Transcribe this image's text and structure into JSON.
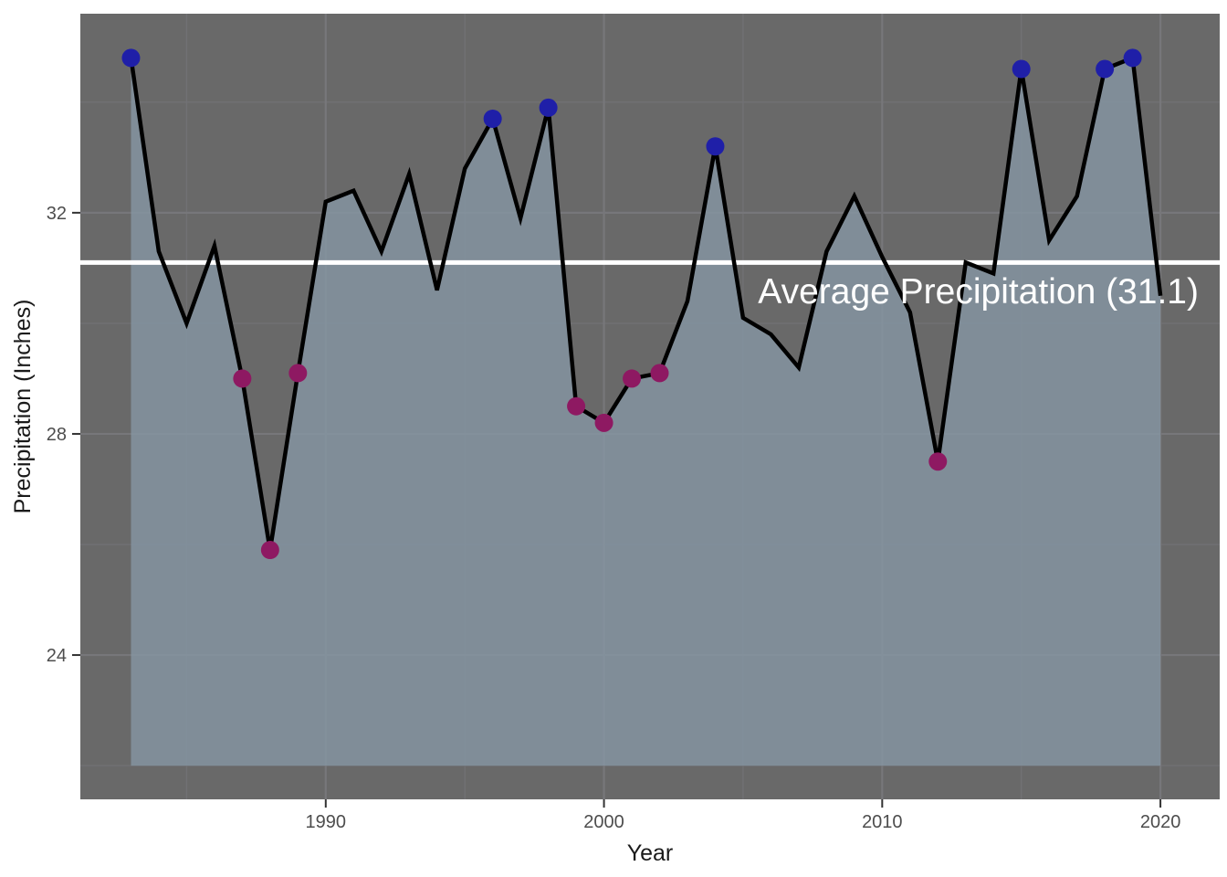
{
  "annotation": {
    "label": "Average Precipitation (31.1)",
    "value": 31.1
  },
  "axes": {
    "x": {
      "label": "Year",
      "tick_labels": [
        "1990",
        "2000",
        "2010",
        "2020"
      ]
    },
    "y": {
      "label": "Precipitation (Inches)",
      "tick_labels": [
        "32",
        "28",
        "24"
      ]
    }
  },
  "colors": {
    "outer_bg": "#ffffff",
    "panel_bg": "#696969",
    "grid_major": "#77777a",
    "grid_minor": "#717174",
    "area_fill": "rgba(134,150,164,0.8)",
    "data_line": "#000000",
    "average_line": "#ffffff",
    "high_point": "#1f1fa8",
    "low_point": "#8e1962",
    "tick_label": "#4d4d4d",
    "axis_title": "#1a1a1a",
    "tick_mark": "#333333",
    "annotation_text": "#ffffff"
  },
  "chart_data": {
    "type": "line",
    "title": "",
    "xlabel": "Year",
    "ylabel": "Precipitation (Inches)",
    "annotation_text": "Average Precipitation (31.1)",
    "x": [
      1983,
      1984,
      1985,
      1986,
      1987,
      1988,
      1989,
      1990,
      1991,
      1992,
      1993,
      1994,
      1995,
      1996,
      1997,
      1998,
      1999,
      2000,
      2001,
      2002,
      2003,
      2004,
      2005,
      2006,
      2007,
      2008,
      2009,
      2010,
      2011,
      2012,
      2013,
      2014,
      2015,
      2016,
      2017,
      2018,
      2019,
      2020
    ],
    "values": [
      34.8,
      31.3,
      30.0,
      31.4,
      29.0,
      25.9,
      29.1,
      32.2,
      32.4,
      31.3,
      32.7,
      30.6,
      32.8,
      33.7,
      31.9,
      33.9,
      28.5,
      28.2,
      29.0,
      29.1,
      30.4,
      33.2,
      30.1,
      29.8,
      29.2,
      31.3,
      32.3,
      31.2,
      30.2,
      27.5,
      31.1,
      30.9,
      34.6,
      31.5,
      32.3,
      34.6,
      34.8,
      30.5
    ],
    "average": 31.1,
    "high_years": [
      1983,
      1996,
      1998,
      2004,
      2015,
      2018,
      2019
    ],
    "low_years": [
      1987,
      1988,
      1989,
      1999,
      2000,
      2001,
      2002,
      2012
    ],
    "xlim": [
      1981.18,
      2022.13
    ],
    "ylim": [
      21.39,
      35.6
    ],
    "x_major_ticks": [
      1990,
      2000,
      2010,
      2020
    ],
    "x_minor_ticks": [
      1985,
      1995,
      2005,
      2015
    ],
    "y_major_ticks": [
      32,
      28,
      24
    ],
    "y_minor_ticks": [
      34,
      30,
      26,
      22
    ],
    "area_baseline": 22,
    "grid": true,
    "legend": "none"
  }
}
